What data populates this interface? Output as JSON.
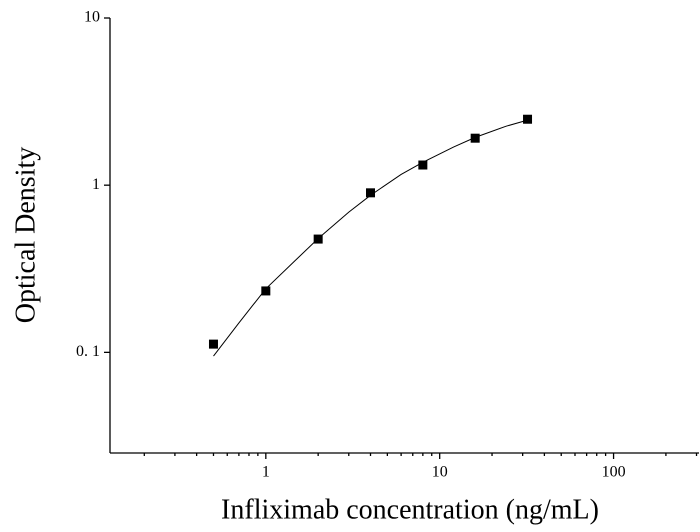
{
  "chart_data": {
    "type": "scatter",
    "log_x": true,
    "log_y": true,
    "x_label": "Infliximab concentration (ng/mL)",
    "y_label": "Optical Density",
    "xlim": [
      0.127,
      310
    ],
    "ylim": [
      0.025,
      10
    ],
    "xticks": [
      1,
      10,
      100
    ],
    "xminorticks": [
      0.2,
      0.3,
      0.4,
      0.5,
      0.6,
      0.7,
      0.8,
      0.9,
      2,
      3,
      4,
      5,
      6,
      7,
      8,
      9,
      20,
      30,
      40,
      50,
      60,
      70,
      80,
      90,
      200,
      300
    ],
    "yticks": [
      {
        "value": 0.1,
        "label": "0. 1"
      },
      1,
      10
    ],
    "series": [
      {
        "kind": "points",
        "color": "#000000",
        "x": [
          0.5,
          1,
          2,
          4,
          8,
          16,
          32
        ],
        "values": [
          0.112,
          0.233,
          0.476,
          0.9,
          1.32,
          1.91,
          2.48
        ]
      },
      {
        "kind": "curve",
        "color": "#000000",
        "x": [
          0.5,
          0.7,
          1,
          1.5,
          2,
          3,
          4,
          6,
          8,
          12,
          16,
          24,
          32
        ],
        "values": [
          0.095,
          0.15,
          0.24,
          0.36,
          0.48,
          0.69,
          0.87,
          1.16,
          1.37,
          1.69,
          1.93,
          2.25,
          2.45
        ]
      }
    ]
  }
}
